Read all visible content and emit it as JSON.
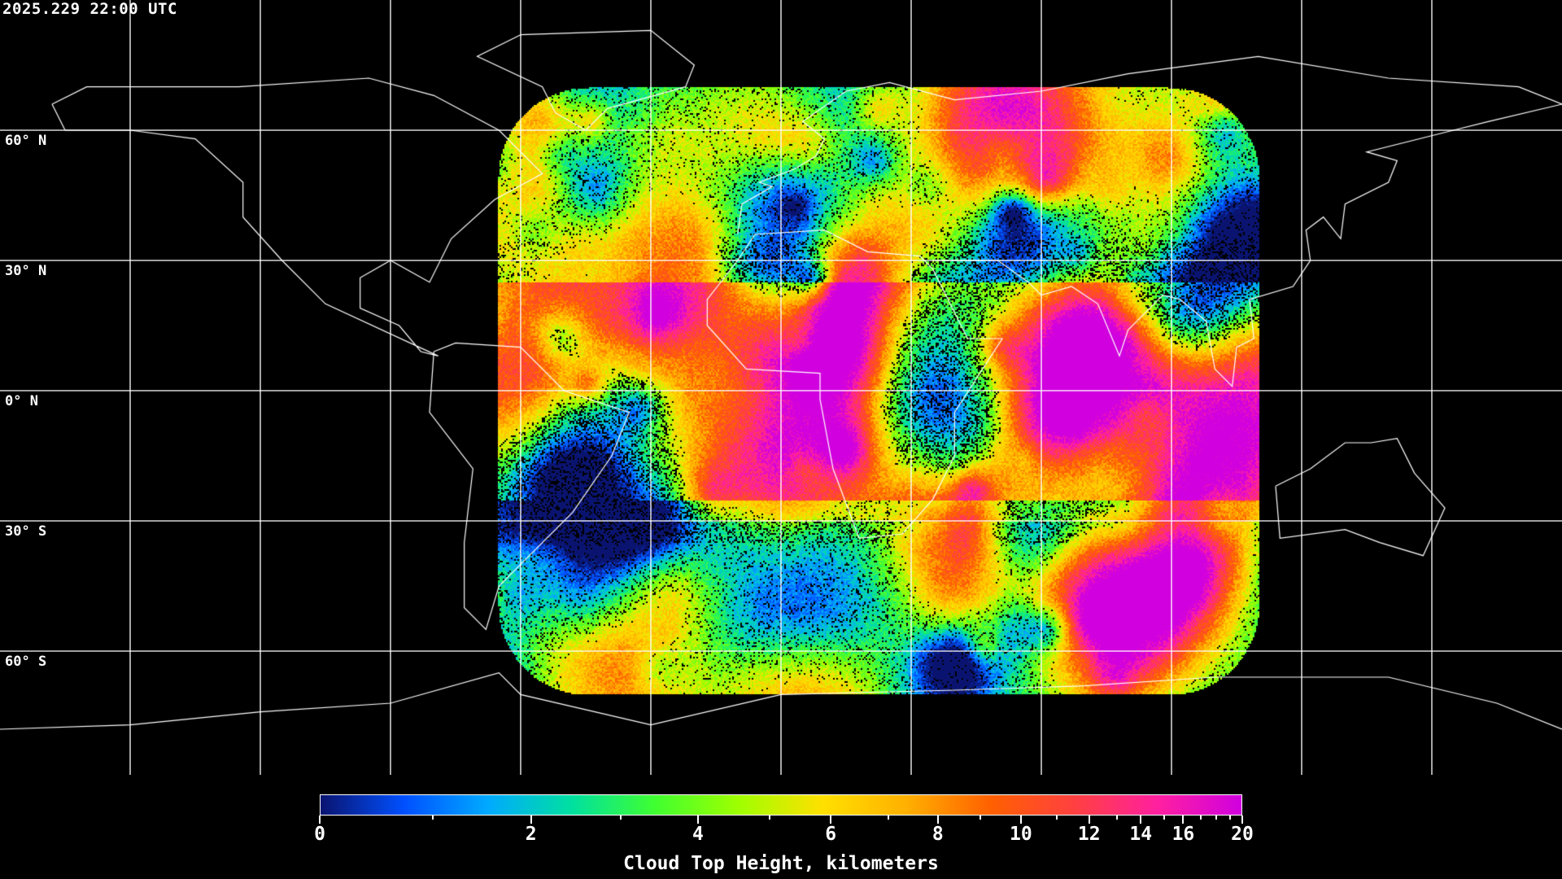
{
  "header": {
    "timestamp": "2025.229 22:00 UTC"
  },
  "map": {
    "projection": "equirectangular",
    "grid_spacing_degrees": 30,
    "lat_labels": [
      "60° N",
      "30° N",
      "0° N",
      "30° S",
      "60° S"
    ],
    "coastline_color": "#ffffff",
    "grid_color": "#ffffff",
    "background": "#000000"
  },
  "colorbar": {
    "title": "Cloud Top Height, kilometers",
    "min": 0,
    "max": 20,
    "tick_labels": [
      "0",
      "2",
      "4",
      "6",
      "8",
      "10",
      "12",
      "14",
      "16",
      "20"
    ],
    "tick_values": [
      0,
      2,
      4,
      6,
      8,
      10,
      12,
      14,
      16,
      20
    ],
    "minor_tick_values": [
      1,
      3,
      5,
      7,
      9,
      11,
      13,
      15,
      17,
      18,
      19
    ],
    "colors": [
      "#0a1470",
      "#0050ff",
      "#00aaff",
      "#00e0a0",
      "#40ff30",
      "#a0ff00",
      "#ffe000",
      "#ffb000",
      "#ff6000",
      "#ff4040",
      "#ff20a0",
      "#d000e0"
    ]
  }
}
